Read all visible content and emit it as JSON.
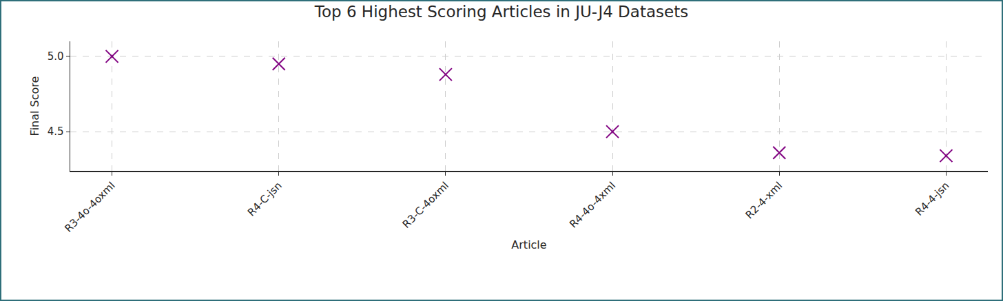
{
  "chart_data": {
    "type": "scatter",
    "title": "Top 6 Highest Scoring Articles in JU-J4 Datasets",
    "x_label": "Article",
    "y_label": "Final Score",
    "categories": [
      "R3-4o-4oxml",
      "R4-C-jsn",
      "R3-C-4oxml",
      "R4-4o-4xml",
      "R2-4-xml",
      "R4-4-jsn"
    ],
    "values": [
      5.0,
      4.95,
      4.88,
      4.5,
      4.36,
      4.34
    ],
    "color": "#800080",
    "marker": "x",
    "ylim": [
      4.24,
      5.1
    ],
    "yticks": [
      {
        "value": 4.5,
        "label": "4.5"
      },
      {
        "value": 5,
        "label": "5.0"
      }
    ],
    "grid": true
  }
}
